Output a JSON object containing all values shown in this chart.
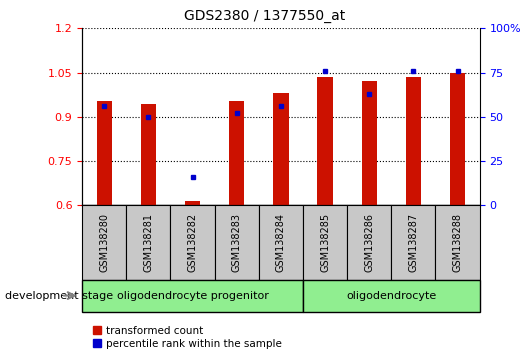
{
  "title": "GDS2380 / 1377550_at",
  "samples": [
    "GSM138280",
    "GSM138281",
    "GSM138282",
    "GSM138283",
    "GSM138284",
    "GSM138285",
    "GSM138286",
    "GSM138287",
    "GSM138288"
  ],
  "transformed_count": [
    0.955,
    0.945,
    0.615,
    0.955,
    0.98,
    1.035,
    1.02,
    1.035,
    1.05
  ],
  "percentile_values": [
    56,
    50,
    16,
    52,
    56,
    76,
    63,
    76,
    76
  ],
  "ylim_left": [
    0.6,
    1.2
  ],
  "ylim_right": [
    0,
    100
  ],
  "yticks_left": [
    0.6,
    0.75,
    0.9,
    1.05,
    1.2
  ],
  "ytick_labels_left": [
    "0.6",
    "0.75",
    "0.9",
    "1.05",
    "1.2"
  ],
  "ytick_labels_right": [
    "0",
    "25",
    "50",
    "75",
    "100%"
  ],
  "group1_samples": 5,
  "group2_samples": 4,
  "group1_label": "oligodendrocyte progenitor",
  "group2_label": "oligodendrocyte",
  "group_color": "#90EE90",
  "bar_color": "#CC1100",
  "dot_color": "#0000CC",
  "bar_width": 0.35,
  "legend_labels": [
    "transformed count",
    "percentile rank within the sample"
  ],
  "legend_colors": [
    "#CC1100",
    "#0000CC"
  ],
  "development_stage_label": "development stage",
  "xtick_bg_color": "#c8c8c8",
  "plot_bg_color": "#ffffff",
  "grid_color": "#000000"
}
